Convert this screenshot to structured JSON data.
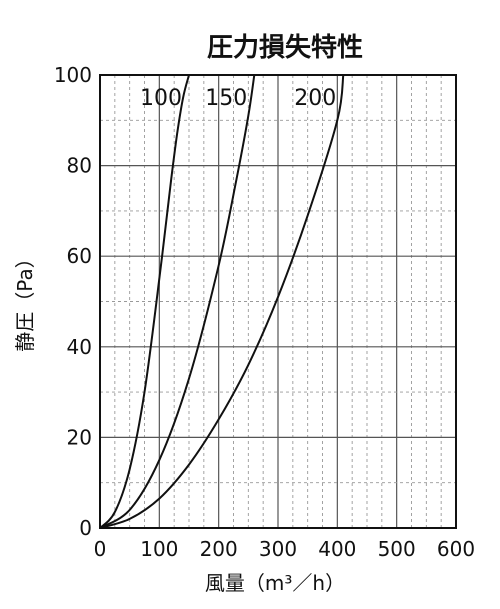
{
  "chart_data": {
    "type": "line",
    "title": "圧力損失特性",
    "xlabel": "風量（m³／h）",
    "ylabel": "静圧（Pa）",
    "xlim": [
      0,
      600
    ],
    "ylim": [
      0,
      100
    ],
    "x_ticks": [
      "0",
      "100",
      "200",
      "300",
      "400",
      "500",
      "600"
    ],
    "y_ticks": [
      "0",
      "20",
      "40",
      "60",
      "80",
      "100"
    ],
    "grid": true,
    "series": [
      {
        "name": "100",
        "x": [
          0,
          25,
          50,
          75,
          100,
          120,
          130,
          140,
          150
        ],
        "y": [
          0,
          3.5,
          13,
          30,
          55,
          77,
          87,
          95,
          100
        ]
      },
      {
        "name": "150",
        "x": [
          0,
          50,
          100,
          150,
          200,
          230,
          250,
          260
        ],
        "y": [
          0,
          4,
          15,
          33,
          58,
          77,
          91,
          100
        ]
      },
      {
        "name": "200",
        "x": [
          0,
          50,
          100,
          150,
          200,
          250,
          300,
          350,
          400,
          410
        ],
        "y": [
          0,
          2,
          6.5,
          14,
          24,
          36,
          51,
          69,
          90,
          100
        ]
      }
    ]
  }
}
